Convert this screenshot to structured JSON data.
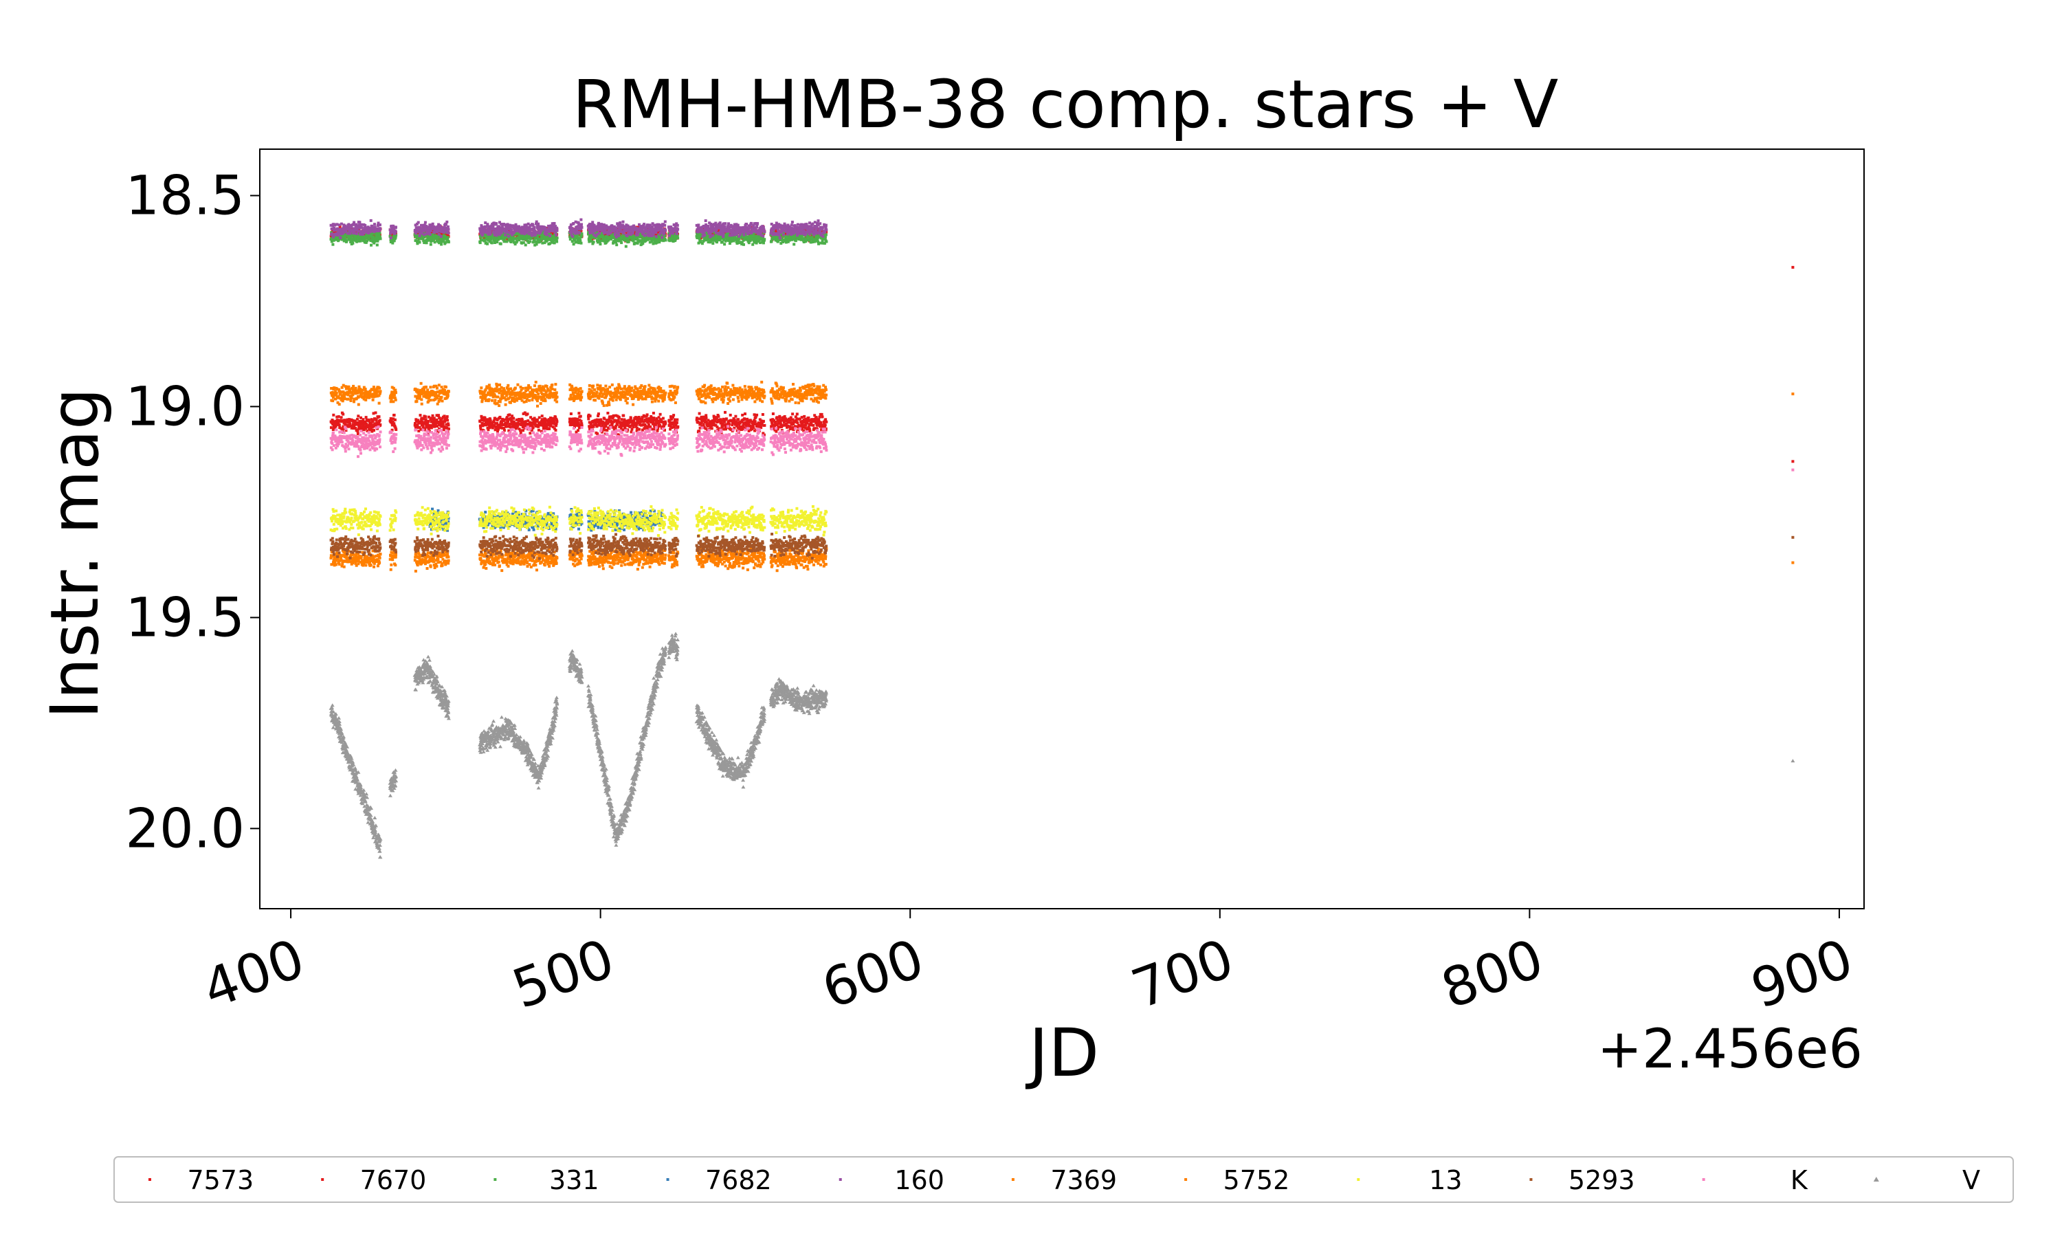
{
  "chart_data": {
    "type": "scatter",
    "title": "RMH-HMB-38 comp. stars + V",
    "xlabel": "JD",
    "ylabel": "Instr. mag",
    "x_offset_label": "+2.456e6",
    "xlim": [
      390,
      908
    ],
    "ylim": [
      20.19,
      18.39
    ],
    "y_inverted": true,
    "xticks": [
      400,
      500,
      600,
      700,
      800,
      900
    ],
    "xtick_labels": [
      "400",
      "500",
      "600",
      "700",
      "800",
      "900"
    ],
    "yticks": [
      18.5,
      19.0,
      19.5,
      20.0
    ],
    "ytick_labels": [
      "18.5",
      "19.0",
      "19.5",
      "20.0"
    ],
    "grid": false,
    "legend_position": "bottom",
    "observing_windows": [
      [
        413,
        429
      ],
      [
        432,
        434
      ],
      [
        440,
        451
      ],
      [
        461,
        486
      ],
      [
        490,
        494
      ],
      [
        496,
        521
      ],
      [
        522,
        525
      ],
      [
        531,
        553
      ],
      [
        555,
        573
      ]
    ],
    "series": [
      {
        "name": "7573",
        "color": "#e41a1c",
        "marker": "point",
        "base_mag": 18.59,
        "scatter": 0.012,
        "windows": [
          [
            413,
            573
          ]
        ],
        "late_points": [
          [
            885,
            18.67
          ]
        ]
      },
      {
        "name": "7670",
        "color": "#e41a1c",
        "marker": "point",
        "base_mag": 19.04,
        "scatter": 0.02,
        "windows": [
          [
            413,
            573
          ]
        ],
        "late_points": [
          [
            885,
            19.13
          ]
        ]
      },
      {
        "name": "331",
        "color": "#4daf4a",
        "marker": "point",
        "base_mag": 18.6,
        "scatter": 0.015,
        "windows": [
          [
            413,
            573
          ]
        ],
        "late_points": []
      },
      {
        "name": "7682",
        "color": "#377eb8",
        "marker": "point",
        "base_mag": 19.27,
        "scatter": 0.02,
        "windows": [
          [
            445,
            520
          ]
        ],
        "late_points": []
      },
      {
        "name": "160",
        "color": "#984ea3",
        "marker": "point",
        "base_mag": 18.58,
        "scatter": 0.015,
        "windows": [
          [
            413,
            573
          ]
        ],
        "late_points": []
      },
      {
        "name": "7369",
        "color": "#ff7f00",
        "marker": "point",
        "base_mag": 18.97,
        "scatter": 0.02,
        "windows": [
          [
            413,
            573
          ]
        ],
        "late_points": [
          [
            885,
            18.97
          ]
        ]
      },
      {
        "name": "5752",
        "color": "#ff7f00",
        "marker": "point",
        "base_mag": 19.36,
        "scatter": 0.02,
        "windows": [
          [
            413,
            573
          ]
        ],
        "late_points": [
          [
            885,
            19.37
          ]
        ]
      },
      {
        "name": "13",
        "color": "#f2f230",
        "marker": "point",
        "base_mag": 19.27,
        "scatter": 0.025,
        "windows": [
          [
            413,
            573
          ]
        ],
        "late_points": []
      },
      {
        "name": "5293",
        "color": "#a65628",
        "marker": "point",
        "base_mag": 19.33,
        "scatter": 0.02,
        "windows": [
          [
            413,
            573
          ]
        ],
        "late_points": [
          [
            885,
            19.31
          ]
        ]
      },
      {
        "name": "K",
        "color": "#f781bf",
        "marker": "point",
        "base_mag": 19.08,
        "scatter": 0.025,
        "windows": [
          [
            413,
            573
          ]
        ],
        "late_points": [
          [
            885,
            19.15
          ]
        ]
      },
      {
        "name": "V",
        "color": "#999999",
        "marker": "triangle",
        "curve": [
          [
            413,
            19.72
          ],
          [
            418,
            19.82
          ],
          [
            422,
            19.9
          ],
          [
            426,
            19.98
          ],
          [
            429,
            20.05
          ],
          [
            432,
            19.9
          ],
          [
            434,
            19.88
          ],
          [
            440,
            19.65
          ],
          [
            444,
            19.62
          ],
          [
            448,
            19.68
          ],
          [
            451,
            19.72
          ],
          [
            461,
            19.8
          ],
          [
            466,
            19.78
          ],
          [
            470,
            19.76
          ],
          [
            476,
            19.82
          ],
          [
            480,
            19.88
          ],
          [
            484,
            19.78
          ],
          [
            488,
            19.63
          ],
          [
            491,
            19.6
          ],
          [
            496,
            19.68
          ],
          [
            500,
            19.82
          ],
          [
            505,
            20.02
          ],
          [
            509,
            19.95
          ],
          [
            514,
            19.78
          ],
          [
            519,
            19.62
          ],
          [
            521,
            19.58
          ],
          [
            524,
            19.56
          ],
          [
            531,
            19.72
          ],
          [
            536,
            19.8
          ],
          [
            541,
            19.86
          ],
          [
            546,
            19.87
          ],
          [
            550,
            19.8
          ],
          [
            553,
            19.72
          ],
          [
            555,
            19.7
          ],
          [
            558,
            19.67
          ],
          [
            564,
            19.7
          ],
          [
            570,
            19.7
          ],
          [
            573,
            19.69
          ]
        ],
        "scatter": 0.025,
        "late_points": [
          [
            885,
            19.84
          ]
        ]
      }
    ]
  }
}
